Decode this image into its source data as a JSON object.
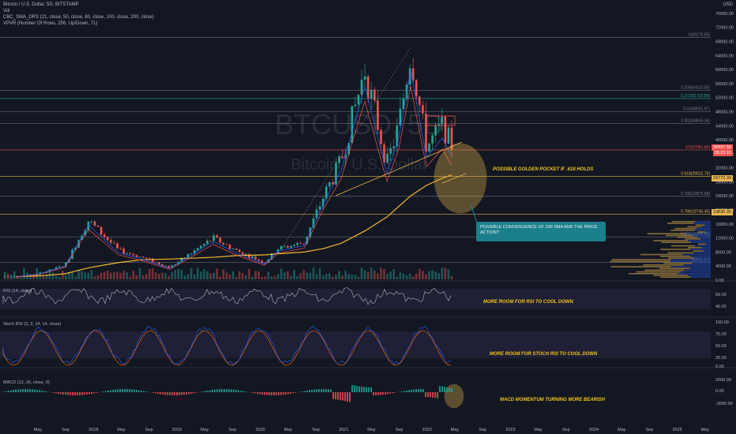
{
  "header": {
    "symbol": "Bitcoin / U.S. Dollar, 5D, BITSTAMP",
    "indicators": [
      "Vol",
      "CBC_SMA_DRS (21, close, 50, close, 80, close, 100, close, 200, close)",
      "VPVR (Number Of Rows, 256, Up/Down, 71)"
    ],
    "currency": "USD"
  },
  "colors": {
    "background": "#131722",
    "up": "#26a69a",
    "down": "#ef5350",
    "sma200": "#f7b731",
    "fib": "#787b86",
    "golden": "#e8b64c",
    "rsi_line": "#787b86",
    "stoch_k": "#2962ff",
    "stoch_d": "#ff6d00",
    "callout": "#1b7f8c"
  },
  "price_axis": {
    "ticks": [
      "76000.00",
      "72000.00",
      "68000.00",
      "64000.00",
      "60000.00",
      "56000.00",
      "52000.00",
      "48000.00",
      "44000.00",
      "40000.00",
      "36000.00",
      "32000.00",
      "28000.00",
      "24000.00",
      "20000.00",
      "16000.00",
      "12000.00",
      "8000.00",
      "4000.00",
      "0.00"
    ],
    "labels": [
      {
        "text": "38497.50",
        "color": "#ef5350"
      },
      {
        "text": "28:23:15",
        "color": "#ef5350"
      },
      {
        "text": "29772.39",
        "color": "#e8b64c"
      },
      {
        "text": "19836.26",
        "color": "#e8b64c"
      }
    ]
  },
  "fib_levels": [
    {
      "label": "0(69176.65)",
      "value": 69176.65
    },
    {
      "label": "0.236(54013.55)",
      "value": 54013.55
    },
    {
      "label": "0.272(51723.59)",
      "value": 51723.59
    },
    {
      "label": "0.33(48001.97)",
      "value": 48001.97
    },
    {
      "label": "0.382(44665.36)",
      "value": 44665.36
    },
    {
      "label": "0.5(37081.60)",
      "value": 37081.6
    },
    {
      "label": "0.618(29522.76)",
      "value": 29522.76
    },
    {
      "label": "0.706(23875.68)",
      "value": 23875.68
    },
    {
      "label": "0.786(18740.45)",
      "value": 18740.45
    },
    {
      "label": "0.886(12325.86)",
      "value": 12325.86
    },
    {
      "label": "1(5012.97)",
      "value": 5012.97
    }
  ],
  "annotations": {
    "golden_pocket": "POSSIBLE GOLDEN POCKET IF .618 HOLDS",
    "convergence": "POSSIBLE CONVERGENCE OF 200 SMA AND THE PRICE ACTION?",
    "rsi_note": "MORE ROOM FOR RSI TO COOL DOWN",
    "stoch_note": "MORE ROOM FOR STOCH RSI TO COOL DOWN",
    "macd_note": "MACD MOMENTUM TURNING MORE BEARISH"
  },
  "watermark": {
    "line1": "BTCUSD, 5D",
    "line2": "Bitcoin / U.S. Dollar"
  },
  "rsi": {
    "title": "RSI (14, close)",
    "ticks": [
      "60.00",
      "40.00"
    ]
  },
  "stoch": {
    "title": "Stoch RSI (3, 3, 14, 14, close)",
    "ticks": [
      "100.00",
      "75.00",
      "50.00",
      "25.00",
      "0.00"
    ]
  },
  "macd": {
    "title": "MACD (12, 26, close, 9)",
    "ticks": [
      "2000.00",
      "0.00",
      "-2000.00"
    ]
  },
  "time_axis": [
    "May",
    "Sep",
    "2018",
    "May",
    "Sep",
    "2019",
    "May",
    "Sep",
    "2020",
    "May",
    "Sep",
    "2021",
    "May",
    "Sep",
    "2022",
    "May",
    "Sep",
    "2023",
    "May",
    "Sep",
    "2024",
    "May",
    "Sep",
    "2025",
    "May"
  ],
  "chart_data": {
    "type": "candlestick",
    "title": "Bitcoin / U.S. Dollar, 5D, BITSTAMP",
    "x": [
      "2017-01",
      "2017-05",
      "2017-09",
      "2017-12",
      "2018-05",
      "2018-09",
      "2018-12",
      "2019-06",
      "2019-09",
      "2020-03",
      "2020-05",
      "2020-09",
      "2020-12",
      "2021-01",
      "2021-04",
      "2021-07",
      "2021-09",
      "2021-11",
      "2022-01",
      "2022-03",
      "2022-04"
    ],
    "close": [
      1000,
      1800,
      4200,
      17000,
      8500,
      6500,
      3600,
      12000,
      8300,
      5000,
      9000,
      10700,
      24000,
      34000,
      60000,
      33000,
      44000,
      65000,
      38000,
      44000,
      38497.5
    ],
    "ylim": [
      0,
      78000
    ],
    "series": [
      {
        "name": "SMA 200",
        "values": [
          1000,
          1200,
          1800,
          3500,
          5000,
          5800,
          6000,
          6500,
          7000,
          7200,
          7500,
          8000,
          9000,
          10500,
          14000,
          18000,
          21000,
          24000,
          27000,
          29000,
          30000
        ]
      }
    ]
  }
}
